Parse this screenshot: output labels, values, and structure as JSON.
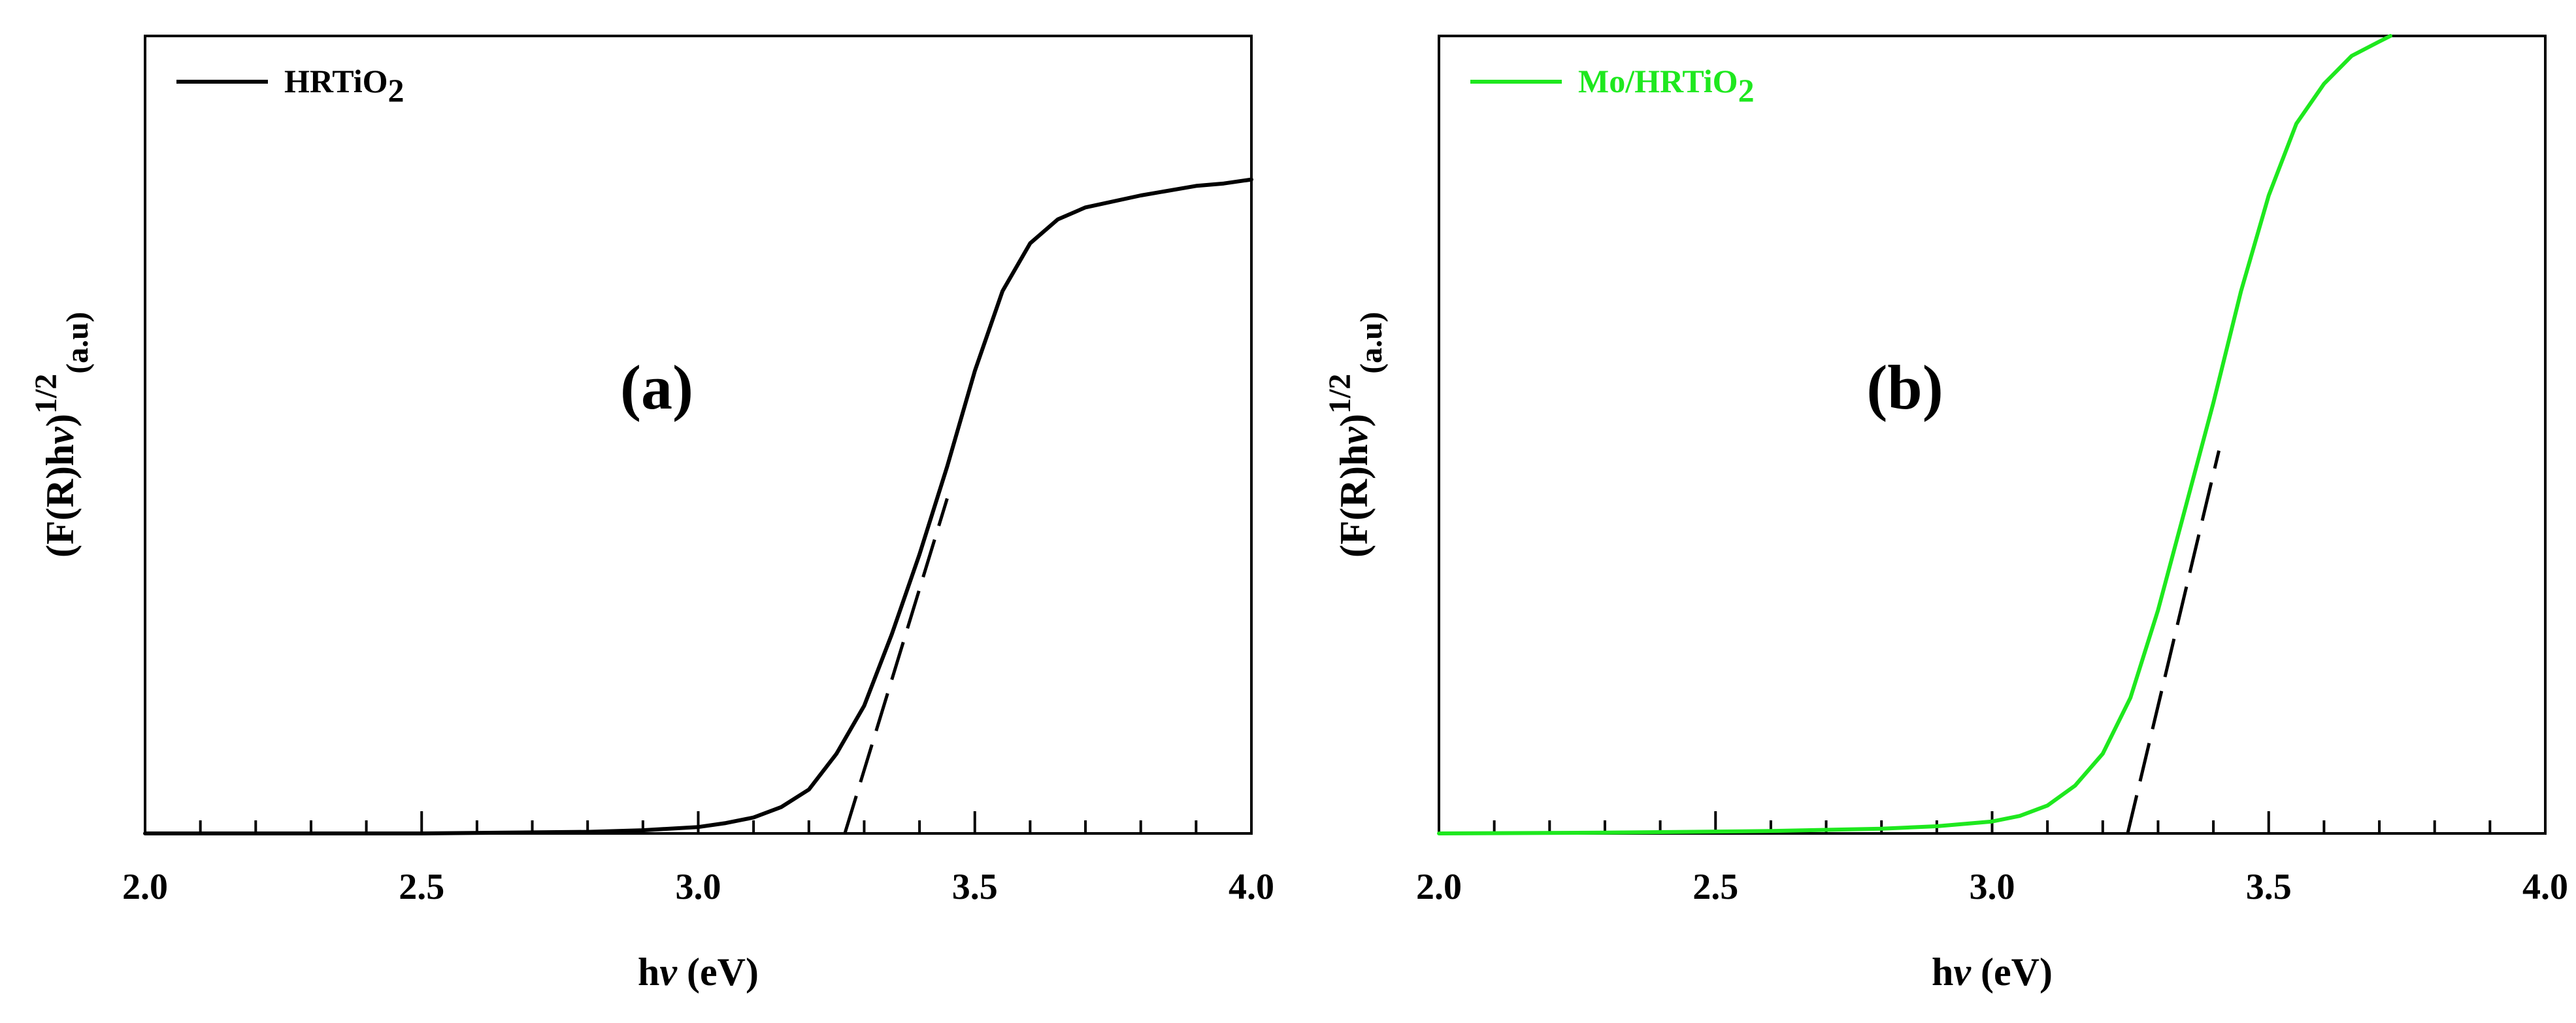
{
  "chart_data": [
    {
      "type": "line",
      "panel_label": "(a)",
      "xlabel": {
        "base": "h",
        "italic": "ν",
        "rest": " (eV)"
      },
      "ylabel": {
        "base": "(F(R)h",
        "italic": "ν",
        "close": ")",
        "sup": "1/2",
        "sub": "(a.u)"
      },
      "xlim": [
        2.0,
        4.0
      ],
      "ylim": [
        0,
        1.0
      ],
      "xticks": [
        "2.0",
        "2.5",
        "3.0",
        "3.5",
        "4.0"
      ],
      "xtick_values": [
        2.0,
        2.5,
        3.0,
        3.5,
        4.0
      ],
      "minor_xtick_step": 0.1,
      "legend": {
        "placement": "top-left",
        "text": "HRTiO",
        "sub": "2"
      },
      "series": [
        {
          "name": "HRTiO2",
          "color": "#000000",
          "x": [
            2.0,
            2.5,
            2.8,
            2.9,
            3.0,
            3.05,
            3.1,
            3.15,
            3.2,
            3.25,
            3.3,
            3.35,
            3.4,
            3.45,
            3.5,
            3.55,
            3.6,
            3.65,
            3.7,
            3.8,
            3.9,
            3.95,
            4.0
          ],
          "y": [
            0.0,
            0.0,
            0.002,
            0.004,
            0.008,
            0.013,
            0.02,
            0.033,
            0.055,
            0.1,
            0.16,
            0.25,
            0.35,
            0.46,
            0.58,
            0.68,
            0.74,
            0.77,
            0.785,
            0.8,
            0.812,
            0.815,
            0.82
          ]
        }
      ],
      "tangent": {
        "color": "#000000",
        "x": [
          3.265,
          3.45
        ],
        "y": [
          0.0,
          0.42
        ]
      }
    },
    {
      "type": "line",
      "panel_label": "(b)",
      "xlabel": {
        "base": "h",
        "italic": "ν",
        "rest": " (eV)"
      },
      "ylabel": {
        "base": "(F(R)h",
        "italic": "ν",
        "close": ")",
        "sup": "1/2",
        "sub": "(a.u)"
      },
      "xlim": [
        2.0,
        4.0
      ],
      "ylim": [
        0,
        1.0
      ],
      "xticks": [
        "2.0",
        "2.5",
        "3.0",
        "3.5",
        "4.0"
      ],
      "xtick_values": [
        2.0,
        2.5,
        3.0,
        3.5,
        4.0
      ],
      "minor_xtick_step": 0.1,
      "legend": {
        "placement": "top-left",
        "text": "Mo/HRTiO",
        "sub": "2"
      },
      "series": [
        {
          "name": "Mo/HRTiO2",
          "color": "#1ee81e",
          "x": [
            2.0,
            2.3,
            2.6,
            2.8,
            2.9,
            3.0,
            3.05,
            3.1,
            3.15,
            3.2,
            3.25,
            3.3,
            3.35,
            3.4,
            3.45,
            3.5,
            3.55,
            3.6,
            3.65,
            3.7,
            3.72
          ],
          "y": [
            0.0,
            0.001,
            0.003,
            0.006,
            0.009,
            0.015,
            0.022,
            0.035,
            0.06,
            0.1,
            0.17,
            0.28,
            0.41,
            0.54,
            0.68,
            0.8,
            0.89,
            0.94,
            0.975,
            0.993,
            1.0
          ]
        }
      ],
      "tangent": {
        "color": "#000000",
        "x": [
          3.245,
          3.41
        ],
        "y": [
          0.0,
          0.48
        ]
      }
    }
  ]
}
